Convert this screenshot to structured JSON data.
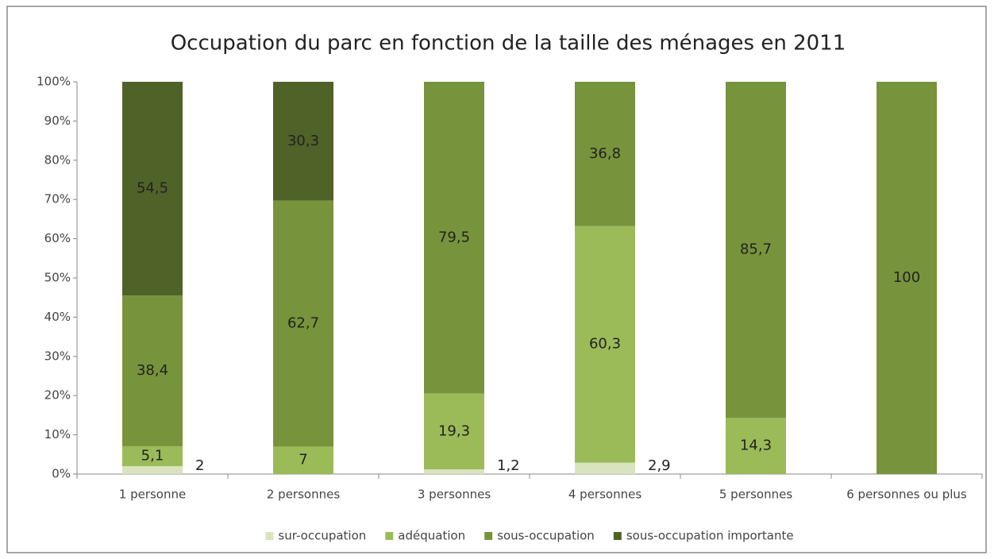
{
  "chart_data": {
    "type": "stacked_bar",
    "title": "Occupation du parc en fonction de la taille des ménages en 2011",
    "categories": [
      "1 personne",
      "2 personnes",
      "3 personnes",
      "4 personnes",
      "5 personnes",
      "6 personnes ou plus"
    ],
    "series": [
      {
        "name": "sur-occupation",
        "color": "#d7e4bd",
        "values": [
          2,
          null,
          1.2,
          2.9,
          null,
          null
        ],
        "value_labels": [
          "2",
          null,
          "1,2",
          "2,9",
          null,
          null
        ]
      },
      {
        "name": "adéquation",
        "color": "#9bbb59",
        "values": [
          5.1,
          7,
          19.3,
          60.3,
          14.3,
          null
        ],
        "value_labels": [
          "5,1",
          "7",
          "19,3",
          "60,3",
          "14,3",
          null
        ]
      },
      {
        "name": "sous-occupation",
        "color": "#77933c",
        "values": [
          38.4,
          62.7,
          79.5,
          36.8,
          85.7,
          100
        ],
        "value_labels": [
          "38,4",
          "62,7",
          "79,5",
          "36,8",
          "85,7",
          "100"
        ]
      },
      {
        "name": "sous-occupation importante",
        "color": "#4f6228",
        "values": [
          54.5,
          30.3,
          null,
          null,
          null,
          null
        ],
        "value_labels": [
          "54,5",
          "30,3",
          null,
          null,
          null,
          null
        ]
      }
    ],
    "ylim": [
      0,
      100
    ],
    "yticks": [
      {
        "value": 0,
        "label": "0%"
      },
      {
        "value": 10,
        "label": "10%"
      },
      {
        "value": 20,
        "label": "20%"
      },
      {
        "value": 30,
        "label": "30%"
      },
      {
        "value": 40,
        "label": "40%"
      },
      {
        "value": 50,
        "label": "50%"
      },
      {
        "value": 60,
        "label": "60%"
      },
      {
        "value": 70,
        "label": "70%"
      },
      {
        "value": 80,
        "label": "80%"
      },
      {
        "value": 90,
        "label": "90%"
      },
      {
        "value": 100,
        "label": "100%"
      }
    ],
    "grid": false,
    "legend": "bottom"
  }
}
